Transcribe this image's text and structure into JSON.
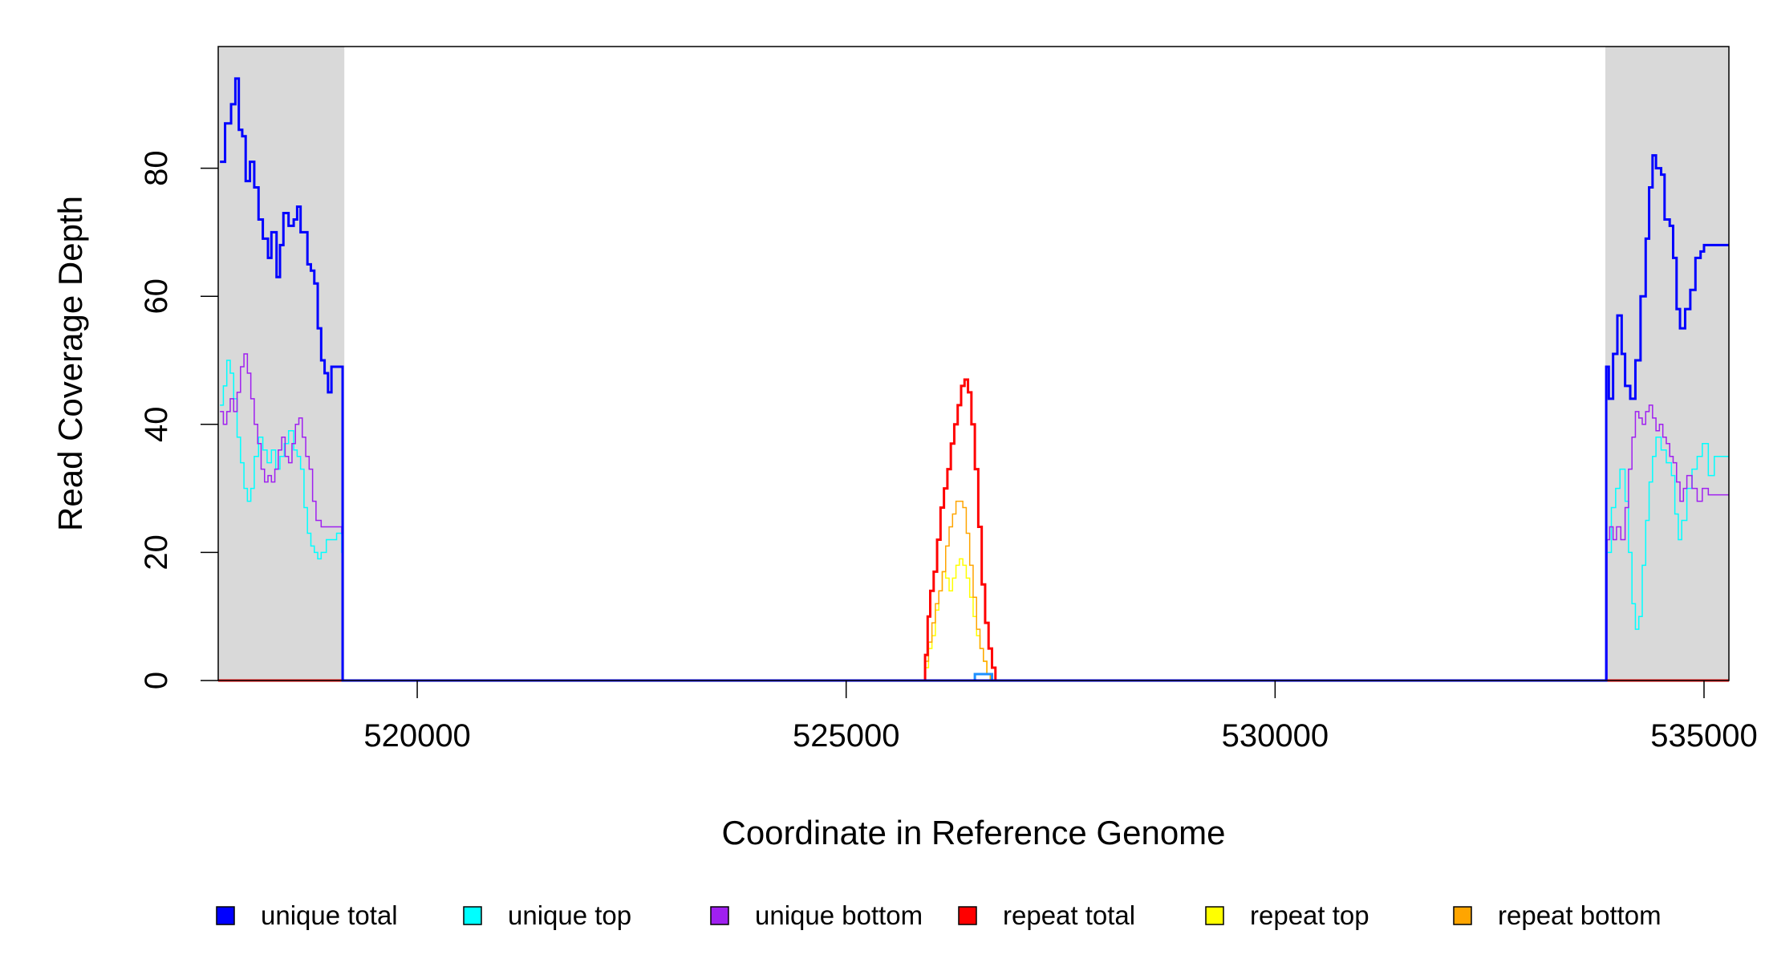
{
  "chart_data": {
    "type": "line",
    "title": "",
    "xlabel": "Coordinate in Reference Genome",
    "ylabel": "Read Coverage Depth",
    "xlim": [
      517680,
      535290
    ],
    "ylim": [
      0,
      99
    ],
    "x_ticks": [
      520000,
      525000,
      530000,
      535000
    ],
    "x_tick_labels": [
      "520000",
      "525000",
      "530000",
      "535000"
    ],
    "y_ticks": [
      0,
      20,
      40,
      60,
      80
    ],
    "y_tick_labels": [
      "0",
      "20",
      "40",
      "60",
      "80"
    ],
    "grid": false,
    "legend_position": "bottom",
    "shaded_regions": [
      {
        "x0": 517680,
        "x1": 519150,
        "color": "#d9d9d9"
      },
      {
        "x0": 533850,
        "x1": 535290,
        "color": "#d9d9d9"
      }
    ],
    "series": [
      {
        "name": "unique total",
        "color": "#0000ff",
        "width": 3,
        "points": [
          [
            517700,
            81
          ],
          [
            517760,
            87
          ],
          [
            517830,
            90
          ],
          [
            517880,
            94
          ],
          [
            517920,
            86
          ],
          [
            517960,
            85
          ],
          [
            518000,
            78
          ],
          [
            518050,
            81
          ],
          [
            518100,
            77
          ],
          [
            518150,
            72
          ],
          [
            518200,
            69
          ],
          [
            518260,
            66
          ],
          [
            518300,
            70
          ],
          [
            518360,
            63
          ],
          [
            518400,
            68
          ],
          [
            518440,
            73
          ],
          [
            518500,
            71
          ],
          [
            518560,
            72
          ],
          [
            518600,
            74
          ],
          [
            518640,
            70
          ],
          [
            518680,
            70
          ],
          [
            518720,
            65
          ],
          [
            518760,
            64
          ],
          [
            518800,
            62
          ],
          [
            518840,
            55
          ],
          [
            518880,
            50
          ],
          [
            518920,
            48
          ],
          [
            518960,
            45
          ],
          [
            519000,
            49
          ],
          [
            519050,
            49
          ],
          [
            519100,
            49
          ],
          [
            519130,
            0
          ],
          [
            533850,
            0
          ],
          [
            533860,
            49
          ],
          [
            533890,
            44
          ],
          [
            533940,
            51
          ],
          [
            533990,
            57
          ],
          [
            534040,
            51
          ],
          [
            534080,
            46
          ],
          [
            534140,
            44
          ],
          [
            534200,
            50
          ],
          [
            534260,
            60
          ],
          [
            534320,
            69
          ],
          [
            534360,
            77
          ],
          [
            534400,
            82
          ],
          [
            534440,
            80
          ],
          [
            534500,
            79
          ],
          [
            534540,
            72
          ],
          [
            534600,
            71
          ],
          [
            534640,
            66
          ],
          [
            534680,
            58
          ],
          [
            534720,
            55
          ],
          [
            534780,
            58
          ],
          [
            534840,
            61
          ],
          [
            534900,
            66
          ],
          [
            534960,
            67
          ],
          [
            535000,
            68
          ],
          [
            535290,
            68
          ]
        ]
      },
      {
        "name": "unique top",
        "color": "#00ffff",
        "width": 1.5,
        "points": [
          [
            517700,
            43
          ],
          [
            517740,
            46
          ],
          [
            517780,
            50
          ],
          [
            517820,
            48
          ],
          [
            517860,
            44
          ],
          [
            517900,
            38
          ],
          [
            517940,
            34
          ],
          [
            517980,
            30
          ],
          [
            518020,
            28
          ],
          [
            518060,
            30
          ],
          [
            518100,
            35
          ],
          [
            518150,
            38
          ],
          [
            518200,
            36
          ],
          [
            518250,
            34
          ],
          [
            518300,
            36
          ],
          [
            518350,
            33
          ],
          [
            518400,
            35
          ],
          [
            518450,
            37
          ],
          [
            518500,
            39
          ],
          [
            518560,
            36
          ],
          [
            518600,
            35
          ],
          [
            518640,
            33
          ],
          [
            518680,
            27
          ],
          [
            518720,
            23
          ],
          [
            518760,
            21
          ],
          [
            518800,
            20
          ],
          [
            518840,
            19
          ],
          [
            518880,
            20
          ],
          [
            518940,
            22
          ],
          [
            519000,
            22
          ],
          [
            519060,
            23
          ],
          [
            519120,
            20
          ],
          [
            519130,
            0
          ],
          [
            533850,
            0
          ],
          [
            533870,
            20
          ],
          [
            533920,
            27
          ],
          [
            533970,
            30
          ],
          [
            534020,
            33
          ],
          [
            534080,
            28
          ],
          [
            534120,
            20
          ],
          [
            534160,
            12
          ],
          [
            534200,
            8
          ],
          [
            534240,
            10
          ],
          [
            534280,
            18
          ],
          [
            534320,
            25
          ],
          [
            534360,
            31
          ],
          [
            534400,
            35
          ],
          [
            534440,
            38
          ],
          [
            534500,
            36
          ],
          [
            534560,
            34
          ],
          [
            534620,
            32
          ],
          [
            534660,
            26
          ],
          [
            534700,
            22
          ],
          [
            534740,
            25
          ],
          [
            534800,
            30
          ],
          [
            534860,
            33
          ],
          [
            534920,
            35
          ],
          [
            534980,
            37
          ],
          [
            535050,
            32
          ],
          [
            535120,
            35
          ],
          [
            535290,
            35
          ]
        ]
      },
      {
        "name": "unique bottom",
        "color": "#a020f0",
        "width": 1.5,
        "points": [
          [
            517700,
            42
          ],
          [
            517740,
            40
          ],
          [
            517780,
            42
          ],
          [
            517820,
            44
          ],
          [
            517860,
            42
          ],
          [
            517900,
            45
          ],
          [
            517940,
            49
          ],
          [
            517980,
            51
          ],
          [
            518020,
            48
          ],
          [
            518060,
            44
          ],
          [
            518100,
            40
          ],
          [
            518140,
            37
          ],
          [
            518180,
            33
          ],
          [
            518220,
            31
          ],
          [
            518260,
            32
          ],
          [
            518300,
            31
          ],
          [
            518340,
            33
          ],
          [
            518380,
            36
          ],
          [
            518420,
            38
          ],
          [
            518460,
            35
          ],
          [
            518500,
            34
          ],
          [
            518540,
            37
          ],
          [
            518580,
            40
          ],
          [
            518620,
            41
          ],
          [
            518660,
            38
          ],
          [
            518700,
            35
          ],
          [
            518740,
            33
          ],
          [
            518780,
            28
          ],
          [
            518820,
            25
          ],
          [
            518880,
            24
          ],
          [
            518940,
            24
          ],
          [
            519000,
            24
          ],
          [
            519060,
            24
          ],
          [
            519120,
            23
          ],
          [
            519130,
            0
          ],
          [
            533850,
            0
          ],
          [
            533870,
            22
          ],
          [
            533900,
            24
          ],
          [
            533940,
            22
          ],
          [
            533980,
            24
          ],
          [
            534030,
            22
          ],
          [
            534080,
            27
          ],
          [
            534120,
            33
          ],
          [
            534160,
            38
          ],
          [
            534200,
            42
          ],
          [
            534240,
            41
          ],
          [
            534280,
            40
          ],
          [
            534320,
            42
          ],
          [
            534360,
            43
          ],
          [
            534400,
            41
          ],
          [
            534440,
            39
          ],
          [
            534480,
            40
          ],
          [
            534520,
            38
          ],
          [
            534560,
            37
          ],
          [
            534600,
            35
          ],
          [
            534640,
            34
          ],
          [
            534680,
            31
          ],
          [
            534720,
            28
          ],
          [
            534760,
            30
          ],
          [
            534800,
            32
          ],
          [
            534860,
            30
          ],
          [
            534920,
            28
          ],
          [
            534980,
            30
          ],
          [
            535050,
            29
          ],
          [
            535120,
            29
          ],
          [
            535290,
            29
          ]
        ]
      },
      {
        "name": "repeat total",
        "color": "#ff0000",
        "width": 3,
        "points": [
          [
            517680,
            0
          ],
          [
            525900,
            0
          ],
          [
            525920,
            4
          ],
          [
            525950,
            10
          ],
          [
            525980,
            14
          ],
          [
            526020,
            17
          ],
          [
            526060,
            22
          ],
          [
            526100,
            27
          ],
          [
            526140,
            30
          ],
          [
            526180,
            33
          ],
          [
            526220,
            37
          ],
          [
            526260,
            40
          ],
          [
            526300,
            43
          ],
          [
            526340,
            46
          ],
          [
            526380,
            47
          ],
          [
            526420,
            45
          ],
          [
            526460,
            40
          ],
          [
            526500,
            33
          ],
          [
            526540,
            24
          ],
          [
            526580,
            15
          ],
          [
            526620,
            9
          ],
          [
            526660,
            5
          ],
          [
            526700,
            2
          ],
          [
            526740,
            0
          ],
          [
            535290,
            0
          ]
        ]
      },
      {
        "name": "repeat top",
        "color": "#ffff00",
        "width": 1.5,
        "points": [
          [
            517680,
            0
          ],
          [
            525900,
            0
          ],
          [
            525920,
            2
          ],
          [
            525960,
            5
          ],
          [
            526000,
            7
          ],
          [
            526040,
            11
          ],
          [
            526080,
            14
          ],
          [
            526120,
            17
          ],
          [
            526160,
            16
          ],
          [
            526200,
            14
          ],
          [
            526240,
            16
          ],
          [
            526280,
            18
          ],
          [
            526320,
            19
          ],
          [
            526360,
            18
          ],
          [
            526400,
            16
          ],
          [
            526440,
            13
          ],
          [
            526480,
            10
          ],
          [
            526520,
            7
          ],
          [
            526560,
            5
          ],
          [
            526600,
            3
          ],
          [
            526640,
            1
          ],
          [
            526680,
            0
          ],
          [
            535290,
            0
          ]
        ]
      },
      {
        "name": "repeat bottom",
        "color": "#ffa500",
        "width": 1.5,
        "points": [
          [
            517680,
            0
          ],
          [
            525900,
            0
          ],
          [
            525920,
            3
          ],
          [
            525960,
            6
          ],
          [
            526000,
            9
          ],
          [
            526040,
            12
          ],
          [
            526080,
            14
          ],
          [
            526120,
            17
          ],
          [
            526160,
            21
          ],
          [
            526200,
            24
          ],
          [
            526240,
            26
          ],
          [
            526280,
            28
          ],
          [
            526320,
            28
          ],
          [
            526360,
            27
          ],
          [
            526400,
            23
          ],
          [
            526440,
            18
          ],
          [
            526480,
            13
          ],
          [
            526520,
            8
          ],
          [
            526560,
            5
          ],
          [
            526600,
            3
          ],
          [
            526640,
            1
          ],
          [
            526680,
            0
          ],
          [
            535290,
            0
          ]
        ]
      },
      {
        "name": "",
        "color": "#1e90ff",
        "width": 3,
        "points": [
          [
            526500,
            0
          ],
          [
            526500,
            1
          ],
          [
            526700,
            1
          ],
          [
            526700,
            0
          ]
        ]
      }
    ],
    "legend": [
      {
        "label": "unique total",
        "color": "#0000ff"
      },
      {
        "label": "unique top",
        "color": "#00ffff"
      },
      {
        "label": "unique bottom",
        "color": "#a020f0"
      },
      {
        "label": "repeat total",
        "color": "#ff0000"
      },
      {
        "label": "repeat top",
        "color": "#ffff00"
      },
      {
        "label": "repeat bottom",
        "color": "#ffa500"
      }
    ]
  }
}
